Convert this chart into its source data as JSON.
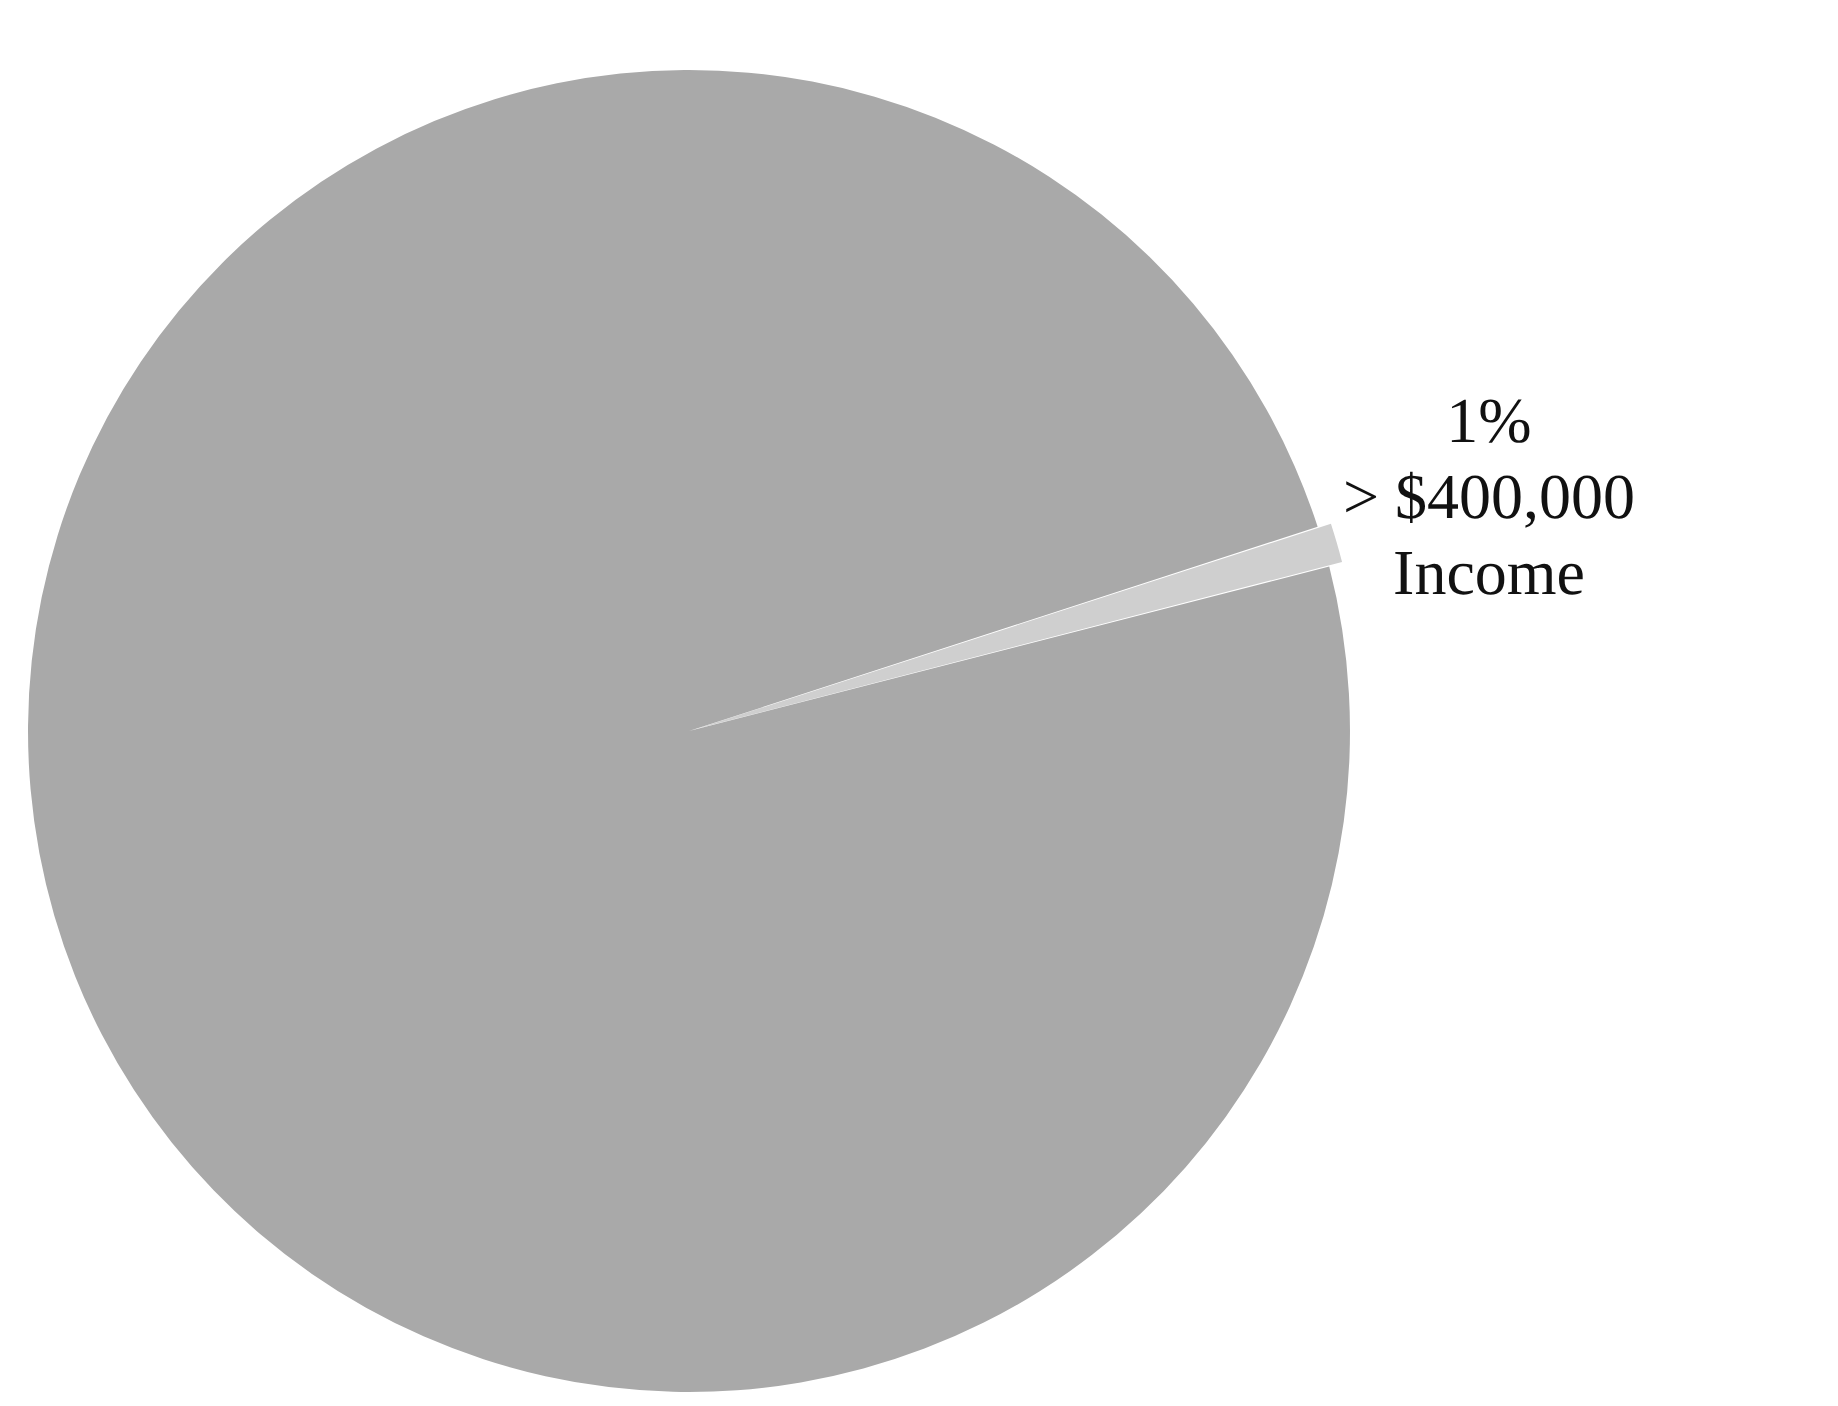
{
  "chart_data": {
    "type": "pie",
    "categories": [
      "> $400,000 Income",
      null
    ],
    "values": [
      1,
      99
    ],
    "colors": [
      "#cfcfcf",
      "#a9a9a9"
    ],
    "value_labels": [
      "1%",
      null
    ],
    "legend": false
  }
}
